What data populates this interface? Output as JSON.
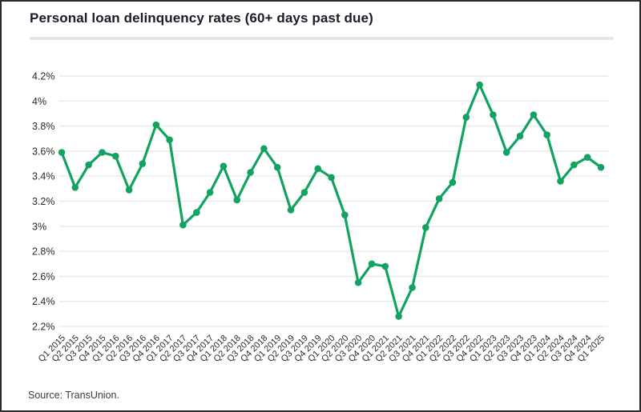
{
  "title": "Personal loan delinquency rates (60+ days past due)",
  "source": "Source: TransUnion.",
  "colors": {
    "line": "#12a360",
    "point": "#12a360",
    "grid": "#e9e9e9",
    "axis_text": "#2a2a2a",
    "title_text": "#171c26",
    "divider": "#e4e4e4",
    "background": "#ffffff",
    "page_border": "#2b2b2b"
  },
  "chart_data": {
    "type": "line",
    "title": "Personal loan delinquency rates (60+ days past due)",
    "series_name": "Personal loan delinquency rate (60+ days past due)",
    "x": [
      "Q1 2015",
      "Q2 2015",
      "Q3 2015",
      "Q4 2015",
      "Q1 2016",
      "Q2 2016",
      "Q3 2016",
      "Q4 2016",
      "Q1 2017",
      "Q2 2017",
      "Q3 2017",
      "Q4 2017",
      "Q1 2018",
      "Q2 2018",
      "Q3 2018",
      "Q4 2018",
      "Q1 2019",
      "Q2 2019",
      "Q3 2019",
      "Q4 2019",
      "Q1 2020",
      "Q2 2020",
      "Q3 2020",
      "Q4 2020",
      "Q1 2021",
      "Q2 2021",
      "Q3 2021",
      "Q4 2021",
      "Q1 2022",
      "Q2 2022",
      "Q3 2022",
      "Q4 2022",
      "Q1 2023",
      "Q2 2023",
      "Q3 2023",
      "Q4 2023",
      "Q1 2024",
      "Q2 2024",
      "Q3 2024",
      "Q4 2024",
      "Q1 2025"
    ],
    "values": [
      3.59,
      3.31,
      3.49,
      3.59,
      3.56,
      3.29,
      3.5,
      3.81,
      3.69,
      3.01,
      3.11,
      3.27,
      3.48,
      3.21,
      3.43,
      3.62,
      3.47,
      3.13,
      3.27,
      3.46,
      3.39,
      3.09,
      2.55,
      2.7,
      2.68,
      2.28,
      2.51,
      2.99,
      3.22,
      3.35,
      3.87,
      4.13,
      3.89,
      3.59,
      3.72,
      3.89,
      3.73,
      3.36,
      3.49,
      3.55,
      3.47
    ],
    "unit": "%",
    "xlabel": "",
    "ylabel": "",
    "ylim": [
      2.2,
      4.2
    ],
    "ytick_values": [
      4.2,
      4.0,
      3.8,
      3.6,
      3.4,
      3.2,
      3.0,
      2.8,
      2.6,
      2.4,
      2.2
    ],
    "ytick_labels": [
      "4.2%",
      "4%",
      "3.8%",
      "3.6%",
      "3.4%",
      "3.2%",
      "3%",
      "2.8%",
      "2.6%",
      "2.4%",
      "2.2%"
    ],
    "grid": true,
    "legend_position": "none",
    "x_tick_rotation_deg": -45
  }
}
